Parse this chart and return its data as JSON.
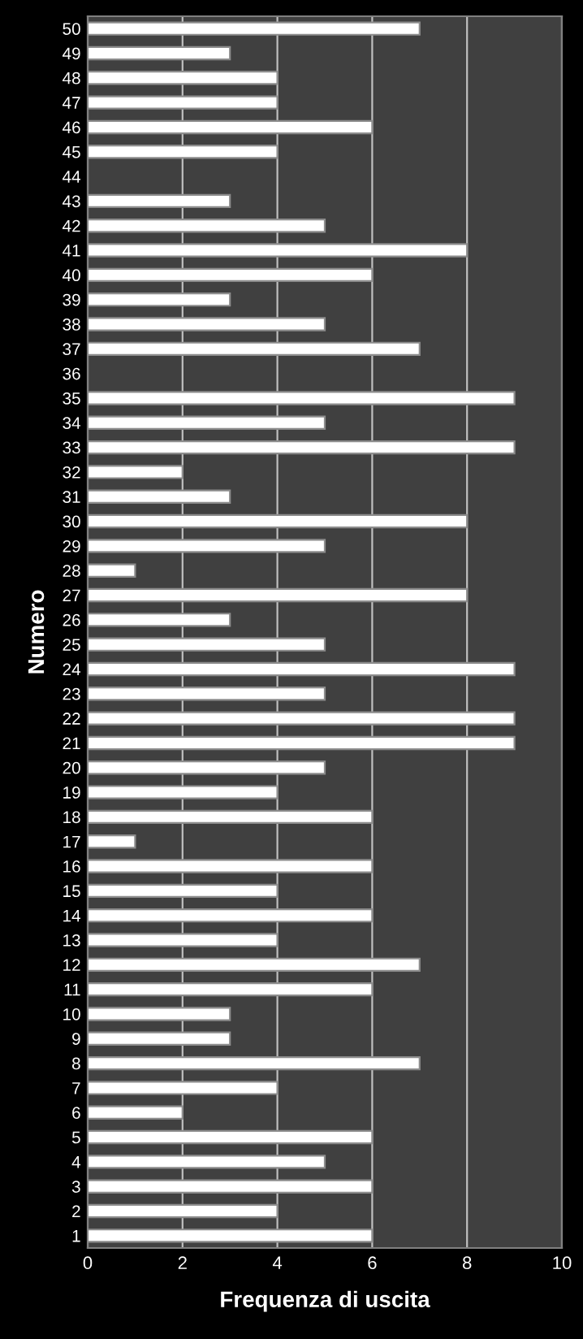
{
  "chart_data": {
    "type": "bar",
    "orientation": "horizontal",
    "xlabel": "Frequenza di uscita",
    "ylabel": "Numero",
    "categories": [
      "50",
      "49",
      "48",
      "47",
      "46",
      "45",
      "44",
      "43",
      "42",
      "41",
      "40",
      "39",
      "38",
      "37",
      "36",
      "35",
      "34",
      "33",
      "32",
      "31",
      "30",
      "29",
      "28",
      "27",
      "26",
      "25",
      "24",
      "23",
      "22",
      "21",
      "20",
      "19",
      "18",
      "17",
      "16",
      "15",
      "14",
      "13",
      "12",
      "11",
      "10",
      "9",
      "8",
      "7",
      "6",
      "5",
      "4",
      "3",
      "2",
      "1"
    ],
    "values": [
      7,
      3,
      4,
      4,
      6,
      4,
      0,
      3,
      5,
      8,
      6,
      3,
      5,
      7,
      0,
      9,
      5,
      9,
      2,
      3,
      8,
      5,
      1,
      8,
      3,
      5,
      9,
      5,
      9,
      9,
      5,
      4,
      6,
      1,
      6,
      4,
      6,
      4,
      7,
      6,
      3,
      3,
      7,
      4,
      2,
      6,
      5,
      6,
      4,
      6
    ],
    "color": "#ffffff",
    "xlim": [
      0,
      10
    ],
    "xticks": [
      0,
      2,
      4,
      6,
      8,
      10
    ],
    "grid": "x",
    "legend": false
  }
}
